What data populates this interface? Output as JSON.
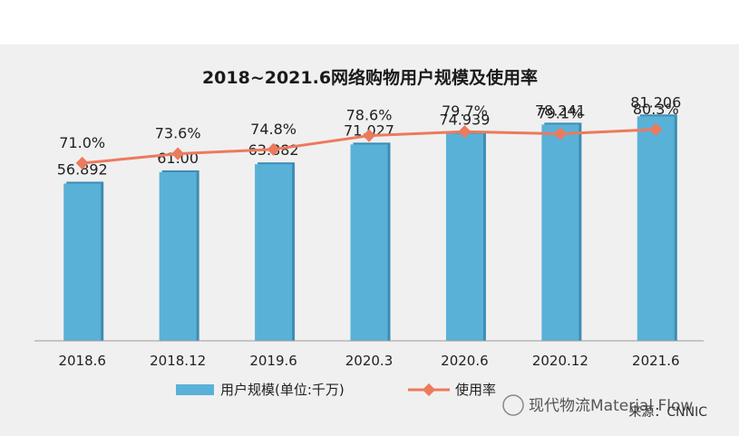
{
  "chart_data": {
    "type": "bar+line",
    "title": "2018~2021.6网络购物用户规模及使用率",
    "categories": [
      "2018.6",
      "2018.12",
      "2019.6",
      "2020.3",
      "2020.6",
      "2020.12",
      "2021.6"
    ],
    "series": [
      {
        "name": "用户规模(单位:千万)",
        "type": "bar",
        "values": [
          56.892,
          61.0,
          63.882,
          71.027,
          74.939,
          78.241,
          81.206
        ],
        "labels": [
          "56.892",
          "61.00",
          "63.882",
          "71.027",
          "74.939",
          "78.241",
          "81.206"
        ],
        "color": "#5ab1d8"
      },
      {
        "name": "使用率",
        "type": "line",
        "values": [
          71.0,
          73.6,
          74.8,
          78.6,
          79.7,
          79.1,
          80.3
        ],
        "labels": [
          "71.0%",
          "73.6%",
          "74.8%",
          "78.6%",
          "79.7%",
          "79.1%",
          "80.3%"
        ],
        "color": "#ec7a5c"
      }
    ],
    "bar_ylim": [
      0,
      100
    ],
    "line_ylim": [
      0,
      100
    ],
    "legend": "bottom",
    "grid": false
  },
  "watermark": "现代物流Material Flow",
  "source": "来源：CNNIC"
}
